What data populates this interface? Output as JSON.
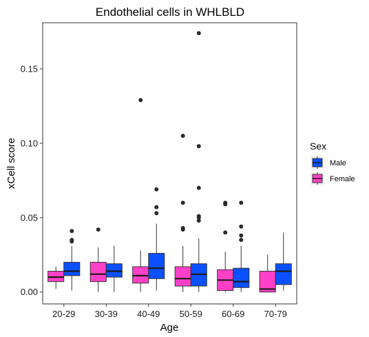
{
  "chart_data": {
    "type": "boxplot",
    "title": "Endothelial cells in WHLBLD",
    "xlabel": "Age",
    "ylabel": "xCell score",
    "ylim": [
      -0.008,
      0.181
    ],
    "yticks": [
      0.0,
      0.05,
      0.1,
      0.15
    ],
    "ytick_labels": [
      "0.00",
      "0.05",
      "0.10",
      "0.15"
    ],
    "categories": [
      "20-29",
      "30-39",
      "40-49",
      "50-59",
      "60-69",
      "70-79"
    ],
    "grid": false,
    "legend": {
      "title": "Sex",
      "position": "right"
    },
    "series": [
      {
        "name": "Female",
        "color": "#FF40C8",
        "boxes": [
          {
            "whisker_low": 0.002,
            "q1": 0.007,
            "median": 0.01,
            "q3": 0.014,
            "whisker_high": 0.017,
            "outliers": []
          },
          {
            "whisker_low": 0.0,
            "q1": 0.007,
            "median": 0.012,
            "q3": 0.02,
            "whisker_high": 0.03,
            "outliers": [
              0.042
            ]
          },
          {
            "whisker_low": 0.0,
            "q1": 0.006,
            "median": 0.011,
            "q3": 0.017,
            "whisker_high": 0.028,
            "outliers": [
              0.129
            ]
          },
          {
            "whisker_low": 0.0,
            "q1": 0.004,
            "median": 0.009,
            "q3": 0.017,
            "whisker_high": 0.031,
            "outliers": [
              0.042,
              0.043,
              0.06,
              0.105
            ]
          },
          {
            "whisker_low": 0.0,
            "q1": 0.001,
            "median": 0.008,
            "q3": 0.015,
            "whisker_high": 0.027,
            "outliers": [
              0.04,
              0.059,
              0.06
            ]
          },
          {
            "whisker_low": 0.0,
            "q1": 0.0,
            "median": 0.002,
            "q3": 0.014,
            "whisker_high": 0.025,
            "outliers": []
          }
        ]
      },
      {
        "name": "Male",
        "color": "#0A50FF",
        "boxes": [
          {
            "whisker_low": 0.001,
            "q1": 0.011,
            "median": 0.014,
            "q3": 0.02,
            "whisker_high": 0.031,
            "outliers": [
              0.034,
              0.035,
              0.041
            ]
          },
          {
            "whisker_low": 0.0,
            "q1": 0.01,
            "median": 0.014,
            "q3": 0.019,
            "whisker_high": 0.031,
            "outliers": []
          },
          {
            "whisker_low": 0.001,
            "q1": 0.009,
            "median": 0.016,
            "q3": 0.026,
            "whisker_high": 0.046,
            "outliers": [
              0.053,
              0.057,
              0.069
            ]
          },
          {
            "whisker_low": 0.0,
            "q1": 0.004,
            "median": 0.012,
            "q3": 0.019,
            "whisker_high": 0.036,
            "outliers": [
              0.048,
              0.05,
              0.051,
              0.07,
              0.098,
              0.174
            ]
          },
          {
            "whisker_low": 0.0,
            "q1": 0.003,
            "median": 0.007,
            "q3": 0.016,
            "whisker_high": 0.031,
            "outliers": [
              0.035,
              0.038,
              0.044,
              0.06
            ]
          },
          {
            "whisker_low": 0.001,
            "q1": 0.005,
            "median": 0.014,
            "q3": 0.019,
            "whisker_high": 0.04,
            "outliers": []
          }
        ]
      }
    ]
  }
}
